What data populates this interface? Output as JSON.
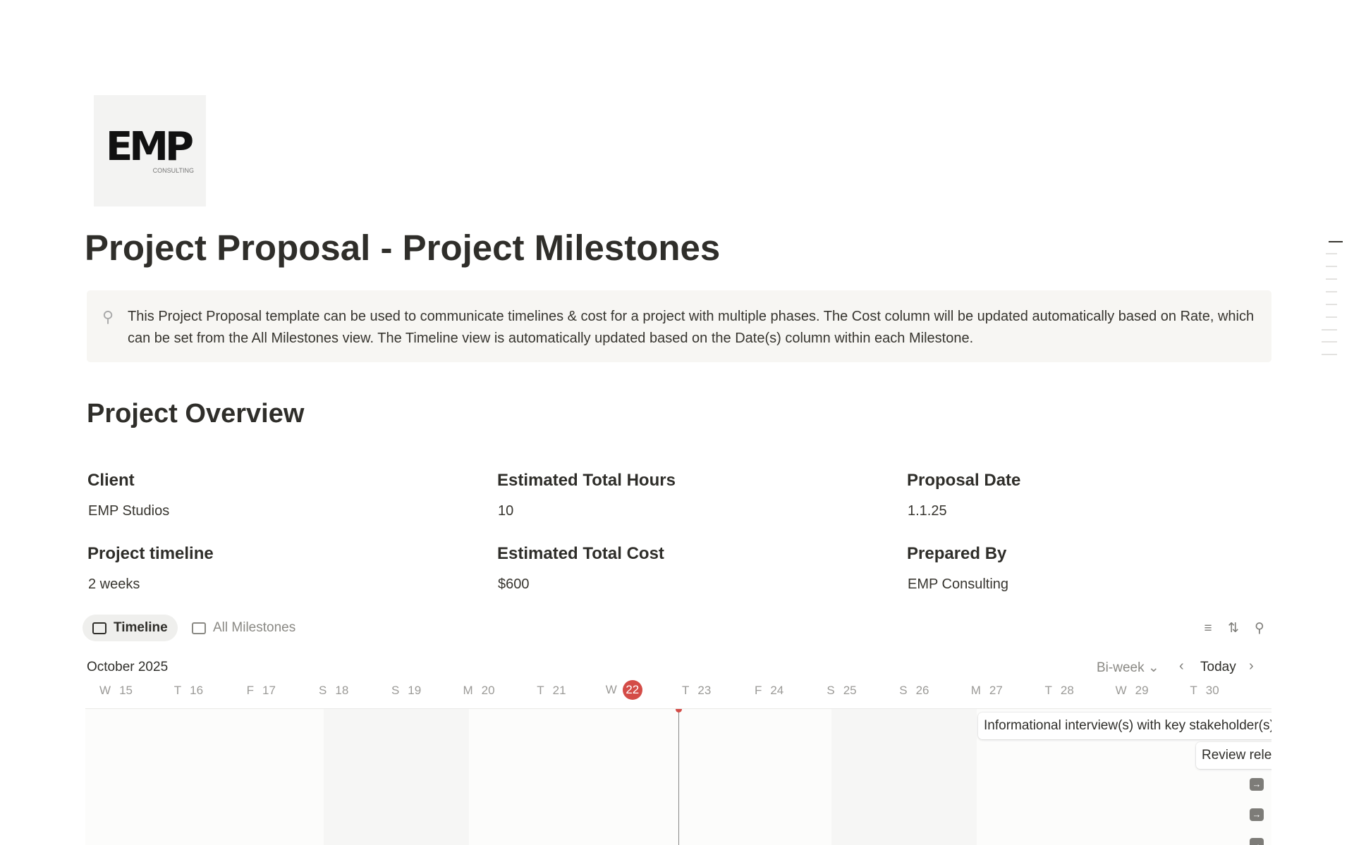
{
  "logo": {
    "text": "EMP",
    "sub": "CONSULTING"
  },
  "title": "Project Proposal - Project Milestones",
  "callout": {
    "icon": "lightbulb-icon",
    "text": "This Project Proposal template can be used to communicate timelines & cost for a project with multiple phases. The Cost column will be updated automatically based on Rate, which can be set from the All Milestones view. The Timeline view is automatically updated based on the Date(s) column within each Milestone."
  },
  "overview": {
    "heading": "Project Overview",
    "properties": [
      {
        "label": "Client",
        "value": "EMP Studios"
      },
      {
        "label": "Estimated Total Hours",
        "value": "10"
      },
      {
        "label": "Proposal Date",
        "value": "1.1.25"
      },
      {
        "label": "Project timeline",
        "value": "2 weeks"
      },
      {
        "label": "Estimated Total Cost",
        "value": "$600"
      },
      {
        "label": "Prepared By",
        "value": "EMP Consulting"
      }
    ]
  },
  "views": {
    "tabs": [
      {
        "label": "Timeline",
        "icon": "timeline-icon",
        "active": true
      },
      {
        "label": "All Milestones",
        "icon": "table-icon",
        "active": false
      }
    ],
    "tools": [
      "filter-icon",
      "sort-icon",
      "search-icon"
    ]
  },
  "timeline": {
    "month": "October 2025",
    "scale": "Bi-week",
    "today_label": "Today",
    "today": "22",
    "accent": "#d44c47",
    "days": [
      {
        "w": "W",
        "d": "15"
      },
      {
        "w": "T",
        "d": "16"
      },
      {
        "w": "F",
        "d": "17"
      },
      {
        "w": "S",
        "d": "18"
      },
      {
        "w": "S",
        "d": "19"
      },
      {
        "w": "M",
        "d": "20"
      },
      {
        "w": "T",
        "d": "21"
      },
      {
        "w": "W",
        "d": "22"
      },
      {
        "w": "T",
        "d": "23"
      },
      {
        "w": "F",
        "d": "24"
      },
      {
        "w": "S",
        "d": "25"
      },
      {
        "w": "S",
        "d": "26"
      },
      {
        "w": "M",
        "d": "27"
      },
      {
        "w": "T",
        "d": "28"
      },
      {
        "w": "W",
        "d": "29"
      },
      {
        "w": "T",
        "d": "30"
      }
    ],
    "items": [
      "Informational interview(s) with key stakeholder(s)",
      "Review relevant materials"
    ]
  }
}
